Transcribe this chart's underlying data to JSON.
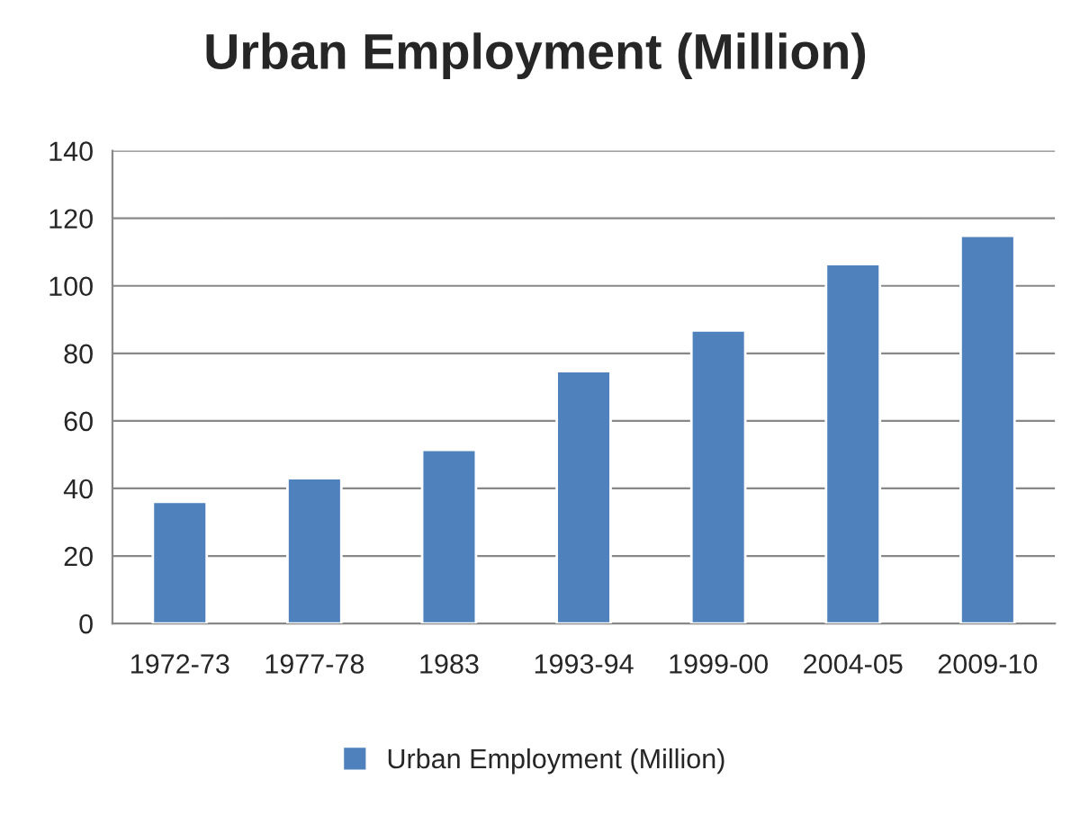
{
  "chart_data": {
    "type": "bar",
    "title": "Urban Employment (Million)",
    "categories": [
      "1972-73",
      "1977-78",
      "1983",
      "1993-94",
      "1999-00",
      "2004-05",
      "2009-10"
    ],
    "series": [
      {
        "name": "Urban Employment (Million)",
        "color": "#4f81bd",
        "values": [
          36,
          43,
          51.4,
          74.7,
          86.8,
          106.4,
          114.8
        ]
      }
    ],
    "ylim": [
      0,
      140
    ],
    "yticks": [
      0,
      20,
      40,
      60,
      80,
      100,
      120,
      140
    ],
    "grid": "y",
    "legend": "bottom"
  }
}
